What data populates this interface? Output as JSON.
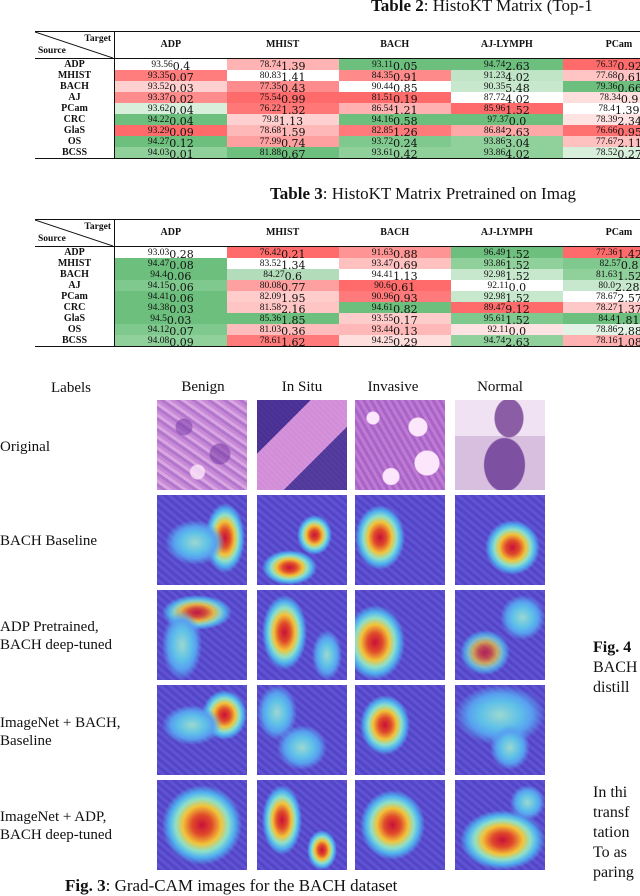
{
  "table2": {
    "caption_label": "Table 2",
    "caption_text": ": HistoKT Matrix (Top-1",
    "corner_target": "Target",
    "corner_source": "Source",
    "columns": [
      "ADP",
      "MHIST",
      "BACH",
      "AJ-LYMPH",
      "PCam"
    ],
    "rows": [
      {
        "source": "ADP",
        "cells": [
          {
            "v": "93.56",
            "s": "0.4",
            "c": "#ffffff"
          },
          {
            "v": "78.74",
            "s": "1.39",
            "c": "#ffb3b3"
          },
          {
            "v": "93.11",
            "s": "0.05",
            "c": "#6cbf7c"
          },
          {
            "v": "94.74",
            "s": "2.63",
            "c": "#6cbf7c"
          },
          {
            "v": "76.37",
            "s": "0.92",
            "c": "#ff6b6b"
          }
        ]
      },
      {
        "source": "MHIST",
        "cells": [
          {
            "v": "93.35",
            "s": "0.07",
            "c": "#ff7d7d"
          },
          {
            "v": "80.83",
            "s": "1.41",
            "c": "#ffffff"
          },
          {
            "v": "84.35",
            "s": "0.91",
            "c": "#ff8a8a"
          },
          {
            "v": "91.23",
            "s": "4.02",
            "c": "#bfe4c6"
          },
          {
            "v": "77.68",
            "s": "0.61",
            "c": "#ffc4c4"
          }
        ]
      },
      {
        "source": "BACH",
        "cells": [
          {
            "v": "93.52",
            "s": "0.03",
            "c": "#ffd0d0"
          },
          {
            "v": "77.35",
            "s": "0.43",
            "c": "#ff8c8c"
          },
          {
            "v": "90.44",
            "s": "0.85",
            "c": "#ffffff"
          },
          {
            "v": "90.35",
            "s": "5.48",
            "c": "#c7e8cd"
          },
          {
            "v": "79.36",
            "s": "0.66",
            "c": "#6cbf7c"
          }
        ]
      },
      {
        "source": "AJ",
        "cells": [
          {
            "v": "93.37",
            "s": "0.02",
            "c": "#ff8c8c"
          },
          {
            "v": "75.54",
            "s": "0.99",
            "c": "#ff6b6b"
          },
          {
            "v": "81.51",
            "s": "0.19",
            "c": "#ff6b6b"
          },
          {
            "v": "87.72",
            "s": "4.02",
            "c": "#ffffff"
          },
          {
            "v": "78.34",
            "s": "0.9",
            "c": "#ffdede"
          }
        ]
      },
      {
        "source": "PCam",
        "cells": [
          {
            "v": "93.62",
            "s": "0.04",
            "c": "#d8efdc"
          },
          {
            "v": "76.22",
            "s": "1.32",
            "c": "#ff7777"
          },
          {
            "v": "86.54",
            "s": "1.21",
            "c": "#ffb0b0"
          },
          {
            "v": "85.96",
            "s": "1.52",
            "c": "#ff6b6b"
          },
          {
            "v": "78.4",
            "s": "1.39",
            "c": "#ffffff"
          }
        ]
      },
      {
        "source": "CRC",
        "cells": [
          {
            "v": "94.22",
            "s": "0.04",
            "c": "#6cbf7c"
          },
          {
            "v": "79.8",
            "s": "1.13",
            "c": "#ffd0d0"
          },
          {
            "v": "94.16",
            "s": "0.58",
            "c": "#6cbf7c"
          },
          {
            "v": "97.37",
            "s": "0.0",
            "c": "#6cbf7c"
          },
          {
            "v": "78.39",
            "s": "2.34",
            "c": "#ffe2e2"
          }
        ]
      },
      {
        "source": "GlaS",
        "cells": [
          {
            "v": "93.29",
            "s": "0.09",
            "c": "#ff6b6b"
          },
          {
            "v": "78.68",
            "s": "1.59",
            "c": "#ffb8b8"
          },
          {
            "v": "82.85",
            "s": "1.26",
            "c": "#ff7a7a"
          },
          {
            "v": "86.84",
            "s": "2.63",
            "c": "#ffa8a8"
          },
          {
            "v": "76.66",
            "s": "0.95",
            "c": "#ff7070"
          }
        ]
      },
      {
        "source": "OS",
        "cells": [
          {
            "v": "94.27",
            "s": "0.12",
            "c": "#6cbf7c"
          },
          {
            "v": "77.99",
            "s": "0.74",
            "c": "#ffa0a0"
          },
          {
            "v": "93.72",
            "s": "0.24",
            "c": "#80c98e"
          },
          {
            "v": "93.86",
            "s": "3.04",
            "c": "#8fd09b"
          },
          {
            "v": "77.67",
            "s": "2.11",
            "c": "#ffc0c0"
          }
        ]
      },
      {
        "source": "BCSS",
        "cells": [
          {
            "v": "94.03",
            "s": "0.01",
            "c": "#8fd09b"
          },
          {
            "v": "81.88",
            "s": "0.67",
            "c": "#6cbf7c"
          },
          {
            "v": "93.61",
            "s": "0.42",
            "c": "#8fd09b"
          },
          {
            "v": "93.86",
            "s": "4.02",
            "c": "#8fd09b"
          },
          {
            "v": "78.52",
            "s": "0.27",
            "c": "#d8efdc"
          }
        ]
      }
    ]
  },
  "table3": {
    "caption_label": "Table 3",
    "caption_text": ": HistoKT Matrix Pretrained on Imag",
    "corner_target": "Target",
    "corner_source": "Source",
    "columns": [
      "ADP",
      "MHIST",
      "BACH",
      "AJ-LYMPH",
      "PCam"
    ],
    "rows": [
      {
        "source": "ADP",
        "cells": [
          {
            "v": "93.03",
            "s": "0.28",
            "c": "#ffffff"
          },
          {
            "v": "76.42",
            "s": "0.21",
            "c": "#ff6b6b"
          },
          {
            "v": "91.63",
            "s": "0.88",
            "c": "#ff9494"
          },
          {
            "v": "96.49",
            "s": "1.52",
            "c": "#6cbf7c"
          },
          {
            "v": "77.36",
            "s": "1.42",
            "c": "#ff6b6b"
          }
        ]
      },
      {
        "source": "MHIST",
        "cells": [
          {
            "v": "94.47",
            "s": "0.08",
            "c": "#6cbf7c"
          },
          {
            "v": "83.52",
            "s": "1.34",
            "c": "#ffffff"
          },
          {
            "v": "93.47",
            "s": "0.69",
            "c": "#ffc0c0"
          },
          {
            "v": "93.86",
            "s": "1.52",
            "c": "#8fd09b"
          },
          {
            "v": "82.57",
            "s": "0.8",
            "c": "#80c98e"
          }
        ]
      },
      {
        "source": "BACH",
        "cells": [
          {
            "v": "94.4",
            "s": "0.06",
            "c": "#6cbf7c"
          },
          {
            "v": "84.27",
            "s": "0.6",
            "c": "#b3ddba"
          },
          {
            "v": "94.41",
            "s": "1.13",
            "c": "#ffffff"
          },
          {
            "v": "92.98",
            "s": "1.52",
            "c": "#c7e8cd"
          },
          {
            "v": "81.63",
            "s": "1.52",
            "c": "#8fd09b"
          }
        ]
      },
      {
        "source": "AJ",
        "cells": [
          {
            "v": "94.15",
            "s": "0.06",
            "c": "#80c98e"
          },
          {
            "v": "80.08",
            "s": "0.77",
            "c": "#ffa0a0"
          },
          {
            "v": "90.6",
            "s": "0.61",
            "c": "#ff6b6b"
          },
          {
            "v": "92.11",
            "s": "0.0",
            "c": "#ffffff"
          },
          {
            "v": "80.0",
            "s": "2.28",
            "c": "#c7e8cd"
          }
        ]
      },
      {
        "source": "PCam",
        "cells": [
          {
            "v": "94.41",
            "s": "0.06",
            "c": "#6cbf7c"
          },
          {
            "v": "82.09",
            "s": "1.95",
            "c": "#ffcccc"
          },
          {
            "v": "90.96",
            "s": "0.93",
            "c": "#ff7a7a"
          },
          {
            "v": "92.98",
            "s": "1.52",
            "c": "#c7e8cd"
          },
          {
            "v": "78.67",
            "s": "2.57",
            "c": "#ffffff"
          }
        ]
      },
      {
        "source": "CRC",
        "cells": [
          {
            "v": "94.38",
            "s": "0.03",
            "c": "#6cbf7c"
          },
          {
            "v": "81.58",
            "s": "2.16",
            "c": "#ffc4c4"
          },
          {
            "v": "94.61",
            "s": "0.82",
            "c": "#6cbf7c"
          },
          {
            "v": "89.47",
            "s": "9.12",
            "c": "#ff6b6b"
          },
          {
            "v": "78.27",
            "s": "1.37",
            "c": "#ffc8c8"
          }
        ]
      },
      {
        "source": "GlaS",
        "cells": [
          {
            "v": "94.5",
            "s": "0.03",
            "c": "#6cbf7c"
          },
          {
            "v": "85.36",
            "s": "1.85",
            "c": "#6cbf7c"
          },
          {
            "v": "93.55",
            "s": "0.17",
            "c": "#ffcccc"
          },
          {
            "v": "95.61",
            "s": "1.52",
            "c": "#80c98e"
          },
          {
            "v": "84.4",
            "s": "1.81",
            "c": "#6cbf7c"
          }
        ]
      },
      {
        "source": "OS",
        "cells": [
          {
            "v": "94.12",
            "s": "0.07",
            "c": "#80c98e"
          },
          {
            "v": "81.03",
            "s": "0.36",
            "c": "#ffbcbc"
          },
          {
            "v": "93.44",
            "s": "0.13",
            "c": "#ffb8b8"
          },
          {
            "v": "92.11",
            "s": "0.0",
            "c": "#ffe2e2"
          },
          {
            "v": "78.86",
            "s": "2.88",
            "c": "#e2f3e5"
          }
        ]
      },
      {
        "source": "BCSS",
        "cells": [
          {
            "v": "94.08",
            "s": "0.09",
            "c": "#8fd09b"
          },
          {
            "v": "78.61",
            "s": "1.62",
            "c": "#ff7a7a"
          },
          {
            "v": "94.25",
            "s": "0.29",
            "c": "#ffdede"
          },
          {
            "v": "94.74",
            "s": "2.63",
            "c": "#8fd09b"
          },
          {
            "v": "78.16",
            "s": "1.08",
            "c": "#ffb0b0"
          }
        ]
      }
    ]
  },
  "figure3": {
    "labels_header": "Labels",
    "columns": [
      "Benign",
      "In Situ",
      "Invasive",
      "Normal"
    ],
    "rows": [
      "Original",
      "BACH Baseline",
      "ADP Pretrained,\nBACH deep-tuned",
      "ImageNet + BACH,\nBaseline",
      "ImageNet + ADP,\nBACH deep-tuned"
    ],
    "row_lines": [
      [
        "Original"
      ],
      [
        "BACH Baseline"
      ],
      [
        "ADP Pretrained,",
        "BACH deep-tuned"
      ],
      [
        "ImageNet + BACH,",
        "Baseline"
      ],
      [
        "ImageNet + ADP,",
        "BACH deep-tuned"
      ]
    ],
    "caption_label": "Fig. 3",
    "caption_text": ": Grad-CAM images for the BACH dataset"
  },
  "side_text": {
    "fig4_label": "Fig. 4",
    "fig4_lines": [
      "BACH",
      "distill"
    ],
    "body_lines": [
      "In thi",
      "transf",
      "tation",
      "To as",
      "paring"
    ]
  }
}
